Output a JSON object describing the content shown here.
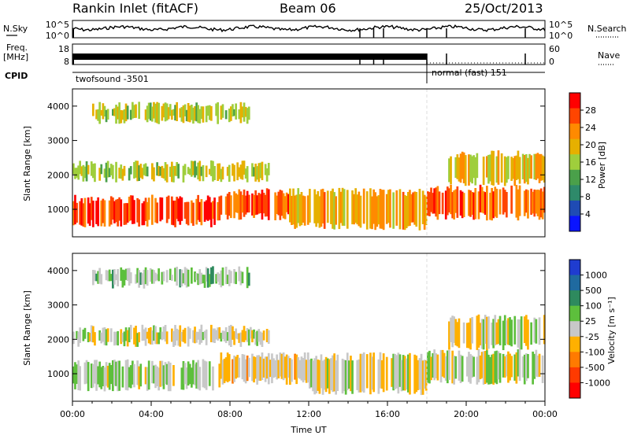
{
  "header": {
    "station": "Rankin Inlet (fitACF)",
    "beam": "Beam 06",
    "date": "25/Oct/2013"
  },
  "left_labels": {
    "nsky": "N.Sky",
    "freq": "Freq.",
    "freq_unit": "[MHz]",
    "cpid": "CPID"
  },
  "right_labels": {
    "nsearch": "N.Search",
    "nave": "Nave"
  },
  "strip_ticks": {
    "noise_left": [
      "10^5",
      "10^0"
    ],
    "noise_right": [
      "10^5",
      "10^0"
    ],
    "freq_left": [
      "18",
      "8"
    ],
    "nave_right": [
      "60",
      "0"
    ]
  },
  "cpid": {
    "mode1": "twofsound  -3501",
    "mode2": "normal (fast) 151",
    "switch_hour": 18.0
  },
  "colors": {
    "power_scale": [
      "#0a14ff",
      "#1f4bb4",
      "#2e8a6a",
      "#4aa04a",
      "#9fce3c",
      "#e6b000",
      "#ff8a00",
      "#ff4500",
      "#ff0000"
    ],
    "velocity_scale": [
      "#1f3cd0",
      "#1f6aa0",
      "#2e8a5e",
      "#5dbf3c",
      "#c8c8c8",
      "#ffb000",
      "#ff7a00",
      "#ff3a00",
      "#ff0000"
    ]
  },
  "chart_data": [
    {
      "type": "heatmap",
      "name_panel": "power",
      "ylabel": "Slant Range [km]",
      "ylim": [
        200,
        4500
      ],
      "yticks": [
        1000,
        2000,
        3000,
        4000
      ],
      "xlim": [
        0,
        24
      ],
      "colorbar": {
        "label": "Power [dB]",
        "ticks": [
          "28",
          "24",
          "20",
          "16",
          "12",
          "8",
          "4"
        ],
        "range": [
          0,
          30
        ]
      },
      "bands": [
        {
          "from_hour": 0,
          "to_hour": 7.5,
          "range_low": 600,
          "range_high": 1300,
          "level": 26
        },
        {
          "from_hour": 7.5,
          "to_hour": 11,
          "range_low": 800,
          "range_high": 1500,
          "level": 24
        },
        {
          "from_hour": 11,
          "to_hour": 18,
          "range_low": 500,
          "range_high": 1500,
          "level": 20
        },
        {
          "from_hour": 18,
          "to_hour": 24,
          "range_low": 800,
          "range_high": 1600,
          "level": 24
        },
        {
          "from_hour": 0,
          "to_hour": 10,
          "range_low": 1900,
          "range_high": 2300,
          "level": 16
        },
        {
          "from_hour": 19,
          "to_hour": 24,
          "range_low": 1800,
          "range_high": 2600,
          "level": 18
        },
        {
          "from_hour": 1,
          "to_hour": 9,
          "range_low": 3600,
          "range_high": 4000,
          "level": 16
        }
      ]
    },
    {
      "type": "heatmap",
      "name_panel": "velocity",
      "ylabel": "Slant Range [km]",
      "ylim": [
        200,
        4500
      ],
      "yticks": [
        1000,
        2000,
        3000,
        4000
      ],
      "xlim": [
        0,
        24
      ],
      "xlabel": "Time UT",
      "xticks": [
        "00:00",
        "04:00",
        "08:00",
        "12:00",
        "16:00",
        "20:00",
        "00:00"
      ],
      "colorbar": {
        "label": "Velocity [m s⁻¹]",
        "ticks": [
          "1000",
          "500",
          "100",
          "25",
          "-25",
          "-100",
          "-500",
          "-1000"
        ],
        "range": [
          -1200,
          1200
        ]
      },
      "bands": [
        {
          "from_hour": 0,
          "to_hour": 7.5,
          "range_low": 600,
          "range_high": 1300,
          "level": 120
        },
        {
          "from_hour": 7.5,
          "to_hour": 12,
          "range_low": 800,
          "range_high": 1500,
          "level": -150
        },
        {
          "from_hour": 12,
          "to_hour": 18,
          "range_low": 500,
          "range_high": 1500,
          "level": -80
        },
        {
          "from_hour": 18,
          "to_hour": 24,
          "range_low": 800,
          "range_high": 1600,
          "level": 0
        },
        {
          "from_hour": 0,
          "to_hour": 10,
          "range_low": 1900,
          "range_high": 2300,
          "level": -20
        },
        {
          "from_hour": 19,
          "to_hour": 24,
          "range_low": 1800,
          "range_high": 2600,
          "level": 0
        },
        {
          "from_hour": 1,
          "to_hour": 9,
          "range_low": 3600,
          "range_high": 4000,
          "level": 200
        }
      ]
    }
  ]
}
